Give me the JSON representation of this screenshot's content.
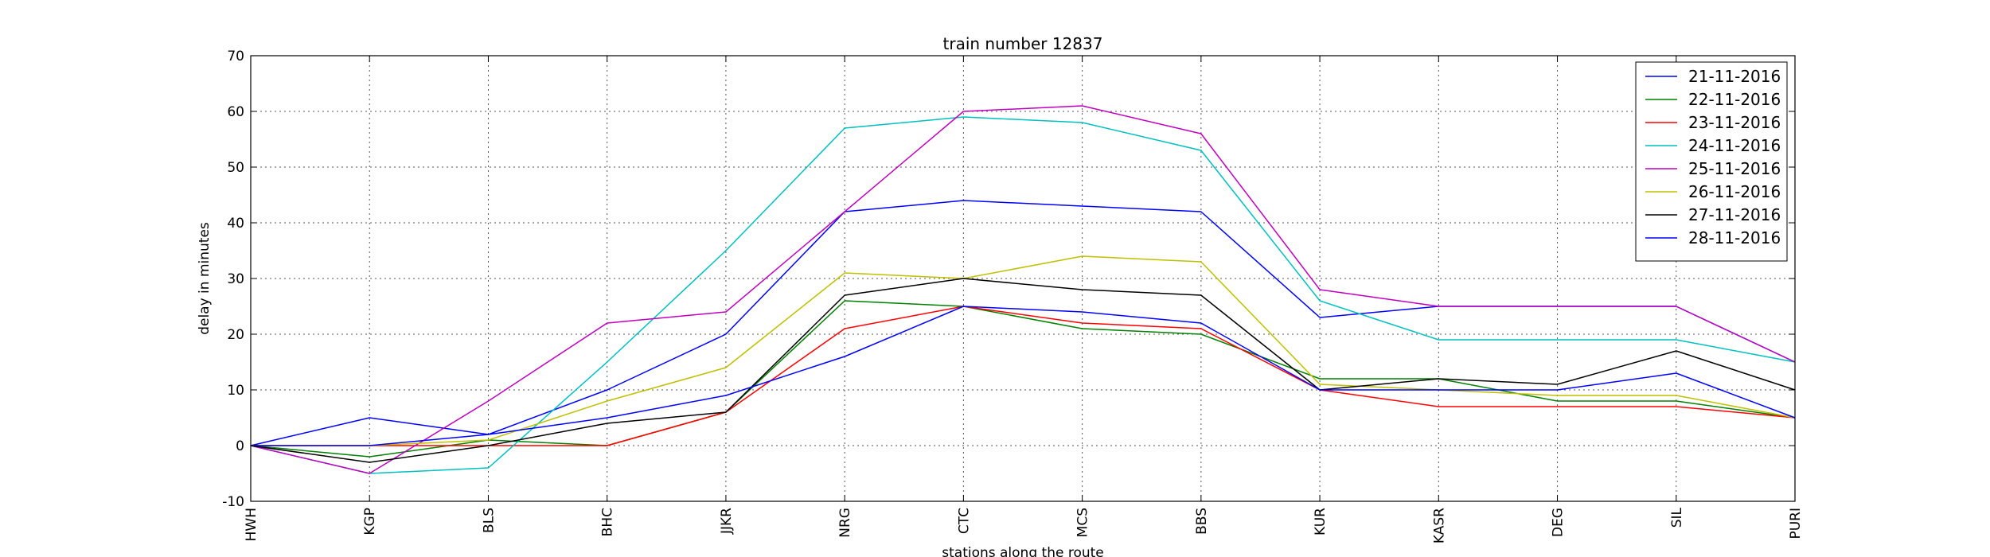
{
  "chart_data": {
    "type": "line",
    "title": "train number 12837",
    "xlabel": "stations along the route",
    "ylabel": "delay in minutes",
    "ylim": [
      -10,
      70
    ],
    "yticks": [
      -10,
      0,
      10,
      20,
      30,
      40,
      50,
      60,
      70
    ],
    "grid": true,
    "legend_position": "top-right",
    "categories": [
      "HWH",
      "KGP",
      "BLS",
      "BHC",
      "JJKR",
      "NRG",
      "CTC",
      "MCS",
      "BBS",
      "KUR",
      "KASR",
      "DEG",
      "SIL",
      "PURI"
    ],
    "series": [
      {
        "name": "21-11-2016",
        "color": "#0000ff",
        "values": [
          0,
          5,
          2,
          10,
          20,
          42,
          44,
          43,
          42,
          23,
          25,
          25,
          25,
          15
        ]
      },
      {
        "name": "22-11-2016",
        "color": "#008000",
        "values": [
          0,
          -2,
          1,
          0,
          6,
          26,
          25,
          21,
          20,
          12,
          12,
          8,
          8,
          5
        ]
      },
      {
        "name": "23-11-2016",
        "color": "#ff0000",
        "values": [
          0,
          0,
          0,
          0,
          6,
          21,
          25,
          22,
          21,
          10,
          7,
          7,
          7,
          5
        ]
      },
      {
        "name": "24-11-2016",
        "color": "#00bfbf",
        "values": [
          0,
          -5,
          -4,
          15,
          35,
          57,
          59,
          58,
          53,
          26,
          19,
          19,
          19,
          15
        ]
      },
      {
        "name": "25-11-2016",
        "color": "#bf00bf",
        "values": [
          0,
          -5,
          8,
          22,
          24,
          42,
          60,
          61,
          56,
          28,
          25,
          25,
          25,
          15
        ]
      },
      {
        "name": "26-11-2016",
        "color": "#bfbf00",
        "values": [
          0,
          0,
          1,
          8,
          14,
          31,
          30,
          34,
          33,
          11,
          10,
          9,
          9,
          5
        ]
      },
      {
        "name": "27-11-2016",
        "color": "#000000",
        "values": [
          0,
          -3,
          0,
          4,
          6,
          27,
          30,
          28,
          27,
          10,
          12,
          11,
          17,
          10
        ]
      },
      {
        "name": "28-11-2016",
        "color": "#0000ff",
        "values": [
          0,
          0,
          2,
          5,
          9,
          16,
          25,
          24,
          22,
          10,
          10,
          10,
          13,
          5
        ]
      }
    ]
  }
}
